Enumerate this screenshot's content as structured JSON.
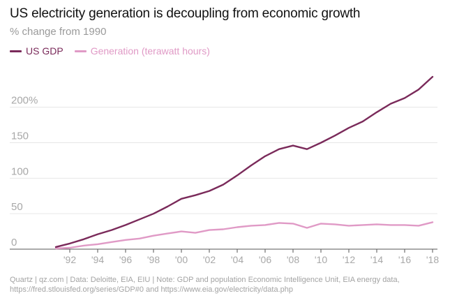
{
  "chart_title": "US electricity generation is decoupling from economic growth",
  "chart_subtitle": "% change from 1990",
  "colors": {
    "gdp": "#7a2a5a",
    "generation": "#e09ac6",
    "grid": "#e6e6e6",
    "axis_text": "#a8a8a8",
    "baseline": "#555555"
  },
  "footer": {
    "line1": "Quartz | qz.com | Data: Deloitte, EIA, EIU | Note: GDP and population Economic Intelligence Unit, EIA energy data,",
    "line2": "https://fred.stlouisfed.org/series/GDP#0 and https://www.eia.gov/electricity/data.php"
  },
  "chart_data": {
    "type": "line",
    "title": "US electricity generation is decoupling from economic growth",
    "subtitle": "% change from 1990",
    "xlabel": "",
    "ylabel": "% change from 1990",
    "xlim": [
      1990,
      2018
    ],
    "ylim": [
      0,
      240
    ],
    "y_ticks": [
      {
        "value": 0,
        "label": "0"
      },
      {
        "value": 50,
        "label": "50"
      },
      {
        "value": 100,
        "label": "100"
      },
      {
        "value": 150,
        "label": "150"
      },
      {
        "value": 200,
        "label": "200%"
      }
    ],
    "x_ticks": [
      {
        "value": 1992,
        "label": "'92"
      },
      {
        "value": 1994,
        "label": "'94"
      },
      {
        "value": 1996,
        "label": "'96"
      },
      {
        "value": 1998,
        "label": "'98"
      },
      {
        "value": 2000,
        "label": "'00"
      },
      {
        "value": 2002,
        "label": "'02"
      },
      {
        "value": 2004,
        "label": "'04"
      },
      {
        "value": 2006,
        "label": "'06"
      },
      {
        "value": 2008,
        "label": "'08"
      },
      {
        "value": 2010,
        "label": "'10"
      },
      {
        "value": 2012,
        "label": "'12"
      },
      {
        "value": 2014,
        "label": "'14"
      },
      {
        "value": 2016,
        "label": "'16"
      },
      {
        "value": 2018,
        "label": "'18"
      }
    ],
    "x": [
      1991,
      1992,
      1993,
      1994,
      1995,
      1996,
      1997,
      1998,
      1999,
      2000,
      2001,
      2002,
      2003,
      2004,
      2005,
      2006,
      2007,
      2008,
      2009,
      2010,
      2011,
      2012,
      2013,
      2014,
      2015,
      2016,
      2017,
      2018
    ],
    "series": [
      {
        "key": "gdp",
        "name": "US GDP",
        "values": [
          3,
          8,
          14,
          21,
          27,
          34,
          42,
          50,
          60,
          71,
          76,
          82,
          91,
          104,
          118,
          131,
          141,
          146,
          141,
          150,
          160,
          171,
          180,
          193,
          205,
          213,
          225,
          243
        ]
      },
      {
        "key": "generation",
        "name": "Generation (terawatt hours)",
        "values": [
          1,
          2,
          5,
          7,
          10,
          13,
          15,
          19,
          22,
          25,
          23,
          27,
          28,
          31,
          33,
          34,
          37,
          36,
          30,
          36,
          35,
          33,
          34,
          35,
          34,
          34,
          33,
          38
        ]
      }
    ]
  }
}
